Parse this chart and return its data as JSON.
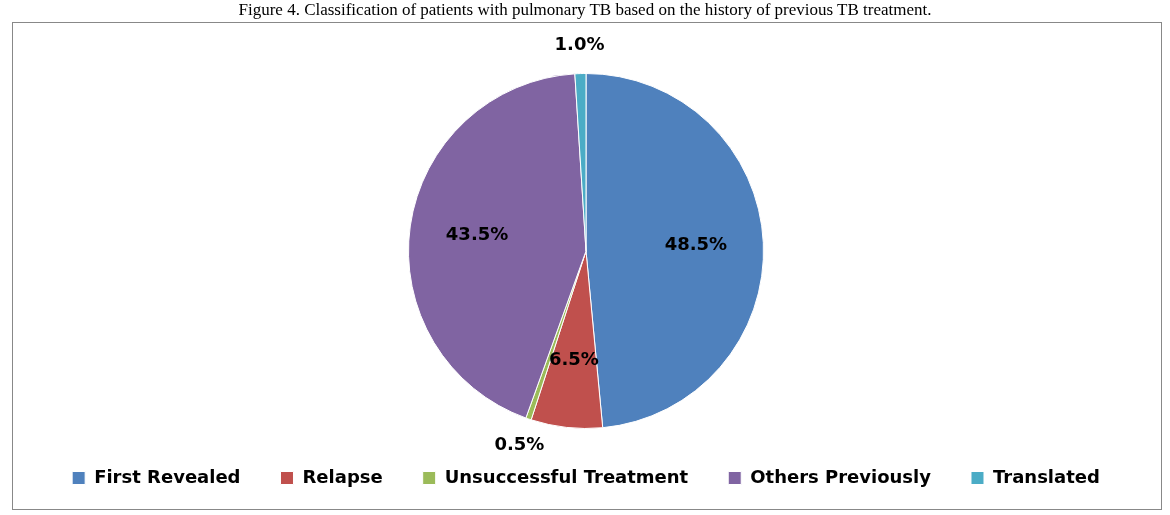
{
  "chart_data": {
    "type": "pie",
    "title": "Figure 4. Classification of patients with pulmonary TB based on the history of previous TB treatment.",
    "categories": [
      "First Revealed",
      "Relapse",
      "Unsuccessful Treatment",
      "Others Previously",
      "Translated"
    ],
    "values": [
      48.5,
      6.5,
      0.5,
      43.5,
      1.0
    ],
    "colors": [
      "#4f81bd",
      "#c0504d",
      "#9bbb59",
      "#8064a2",
      "#4bacc6"
    ],
    "value_labels": [
      "48.5%",
      "6.5%",
      "0.5%",
      "43.5%",
      "1.0%"
    ],
    "legend": "bottom"
  }
}
